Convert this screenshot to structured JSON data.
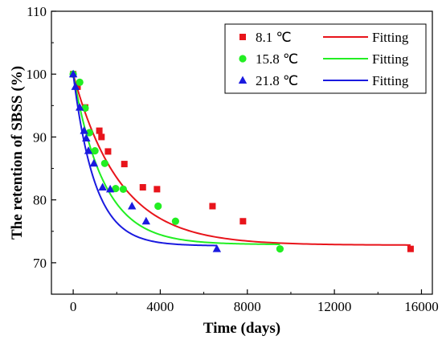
{
  "chart_data": {
    "type": "scatter",
    "title": "",
    "xlabel": "Time (days)",
    "ylabel": "The retention of SBSS (%)",
    "xlim": [
      -1000,
      16500
    ],
    "ylim": [
      65,
      110
    ],
    "xticks": [
      0,
      4000,
      8000,
      12000,
      16000
    ],
    "xtick_labels": [
      "0",
      "4000",
      "8000",
      "12000",
      "16000"
    ],
    "yticks": [
      70,
      80,
      90,
      100,
      110
    ],
    "ytick_labels": [
      "70",
      "80",
      "90",
      "100",
      "110"
    ],
    "grid": false,
    "legend_position": "top-right",
    "series": [
      {
        "name": "8.1 ℃",
        "fit_name": "Fitting",
        "marker": "square",
        "color": "#e8141b",
        "x": [
          0,
          200,
          550,
          1200,
          1300,
          1600,
          2350,
          3200,
          3850,
          6400,
          7800,
          15500
        ],
        "y": [
          100,
          98,
          94.7,
          91,
          90,
          87.7,
          85.7,
          82,
          81.7,
          79,
          76.6,
          72.2
        ],
        "fit": {
          "model": "exponential decay",
          "y0": 72.8,
          "A": 27.2,
          "t": 2150,
          "x_end": 15500
        }
      },
      {
        "name": "15.8 ℃",
        "fit_name": "Fitting",
        "marker": "circle",
        "color": "#22ee22",
        "x": [
          0,
          300,
          550,
          750,
          1000,
          1450,
          1950,
          2300,
          3900,
          4700,
          9500
        ],
        "y": [
          100,
          98.7,
          94.6,
          90.7,
          87.8,
          85.8,
          81.8,
          81.7,
          79,
          76.6,
          72.2
        ],
        "fit": {
          "model": "exponential decay",
          "y0": 72.9,
          "A": 27.1,
          "t": 1400,
          "x_end": 9500
        }
      },
      {
        "name": "21.8 ℃",
        "fit_name": "Fitting",
        "marker": "triangle",
        "color": "#1a1adf",
        "x": [
          0,
          100,
          300,
          500,
          600,
          700,
          950,
          1350,
          1700,
          2700,
          3350,
          6600
        ],
        "y": [
          100,
          98,
          94.7,
          91,
          89.8,
          87.8,
          85.8,
          82,
          81.7,
          79,
          76.6,
          72.2
        ],
        "fit": {
          "model": "exponential decay",
          "y0": 72.7,
          "A": 27.3,
          "t": 1000,
          "x_end": 6600
        }
      }
    ]
  }
}
